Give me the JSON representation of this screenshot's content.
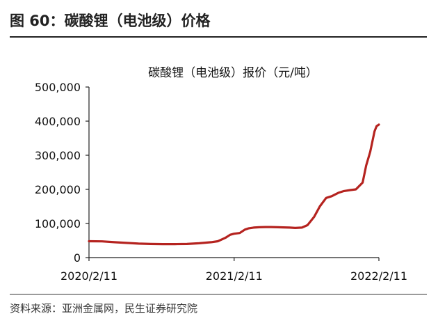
{
  "figure": {
    "title": "图 60：碳酸锂（电池级）价格",
    "source": "资料来源：亚洲金属网，民生证券研究院"
  },
  "chart_data": {
    "type": "line",
    "title": "碳酸锂（电池级）报价（元/吨）",
    "xlabel": "",
    "ylabel": "",
    "ylim": [
      0,
      500000
    ],
    "yticks": [
      0,
      100000,
      200000,
      300000,
      400000,
      500000
    ],
    "ytick_labels": [
      "0",
      "100,000",
      "200,000",
      "300,000",
      "400,000",
      "500,000"
    ],
    "xlim": [
      "2020/2/11",
      "2022/2/11"
    ],
    "xtick_labels": [
      "2020/2/11",
      "2021/2/11",
      "2022/2/11"
    ],
    "grid": false,
    "color": "#b5231f",
    "series": [
      {
        "name": "",
        "x": [
          "2020/2/11",
          "2020/3/15",
          "2020/4/15",
          "2020/5/15",
          "2020/6/15",
          "2020/7/15",
          "2020/8/15",
          "2020/9/15",
          "2020/10/15",
          "2020/11/15",
          "2020/12/15",
          "2021/1/1",
          "2021/1/20",
          "2021/2/1",
          "2021/2/11",
          "2021/2/25",
          "2021/3/10",
          "2021/3/20",
          "2021/4/1",
          "2021/4/15",
          "2021/5/1",
          "2021/5/15",
          "2021/6/1",
          "2021/6/15",
          "2021/7/1",
          "2021/7/15",
          "2021/8/1",
          "2021/8/15",
          "2021/9/1",
          "2021/9/15",
          "2021/10/1",
          "2021/10/15",
          "2021/11/1",
          "2021/11/15",
          "2021/12/1",
          "2021/12/15",
          "2022/1/1",
          "2022/1/10",
          "2022/1/20",
          "2022/1/31",
          "2022/2/5",
          "2022/2/11"
        ],
        "values": [
          48000,
          47500,
          45000,
          43000,
          41000,
          40000,
          39500,
          39500,
          40000,
          42000,
          45000,
          48000,
          58000,
          67000,
          70000,
          72000,
          82000,
          86000,
          88000,
          89000,
          89500,
          89500,
          89000,
          88500,
          88000,
          87000,
          88000,
          95000,
          120000,
          150000,
          175000,
          180000,
          190000,
          195000,
          198000,
          200000,
          220000,
          270000,
          310000,
          370000,
          385000,
          390000
        ]
      }
    ]
  }
}
